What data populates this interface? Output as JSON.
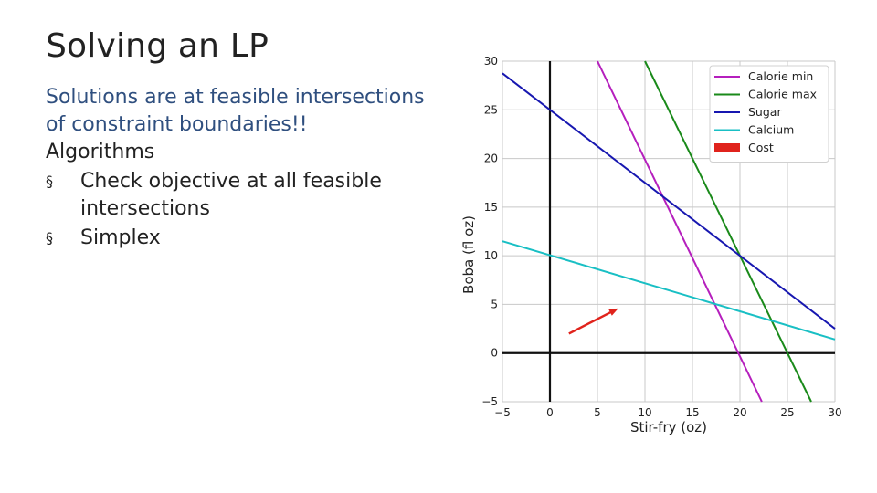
{
  "slide": {
    "title": "Solving an LP",
    "line1": "Solutions are at feasible intersections",
    "line2": "of constraint boundaries!!",
    "heading": "Algorithms",
    "bullets": [
      "Check objective at all feasible intersections",
      "Simplex"
    ],
    "bullet_marker": "§"
  },
  "chart_data": {
    "type": "line",
    "title": "",
    "xlabel": "Stir-fry (oz)",
    "ylabel": "Boba (fl oz)",
    "xlim": [
      -5,
      30
    ],
    "ylim": [
      -5,
      30
    ],
    "x_ticks": [
      "−5",
      "0",
      "5",
      "10",
      "15",
      "20",
      "25",
      "30"
    ],
    "y_ticks": [
      "−5",
      "0",
      "5",
      "10",
      "15",
      "20",
      "25",
      "30"
    ],
    "grid": true,
    "legend_position": "top-right",
    "series": [
      {
        "name": "Calorie min",
        "color": "#b51fbd",
        "x": [
          5,
          22.3
        ],
        "y": [
          30,
          -5
        ]
      },
      {
        "name": "Calorie max",
        "color": "#1a8a1a",
        "x": [
          10,
          27.5
        ],
        "y": [
          30,
          -5
        ]
      },
      {
        "name": "Sugar",
        "color": "#1717b0",
        "x": [
          -5,
          30
        ],
        "y": [
          28.75,
          2.5
        ]
      },
      {
        "name": "Calcium",
        "color": "#19bfc4",
        "x": [
          -5,
          30
        ],
        "y": [
          11.5,
          1.4
        ]
      }
    ],
    "cost": {
      "name": "Cost",
      "color": "#e0231c",
      "x": [
        2,
        7.2
      ],
      "y": [
        2,
        4.6
      ]
    }
  }
}
